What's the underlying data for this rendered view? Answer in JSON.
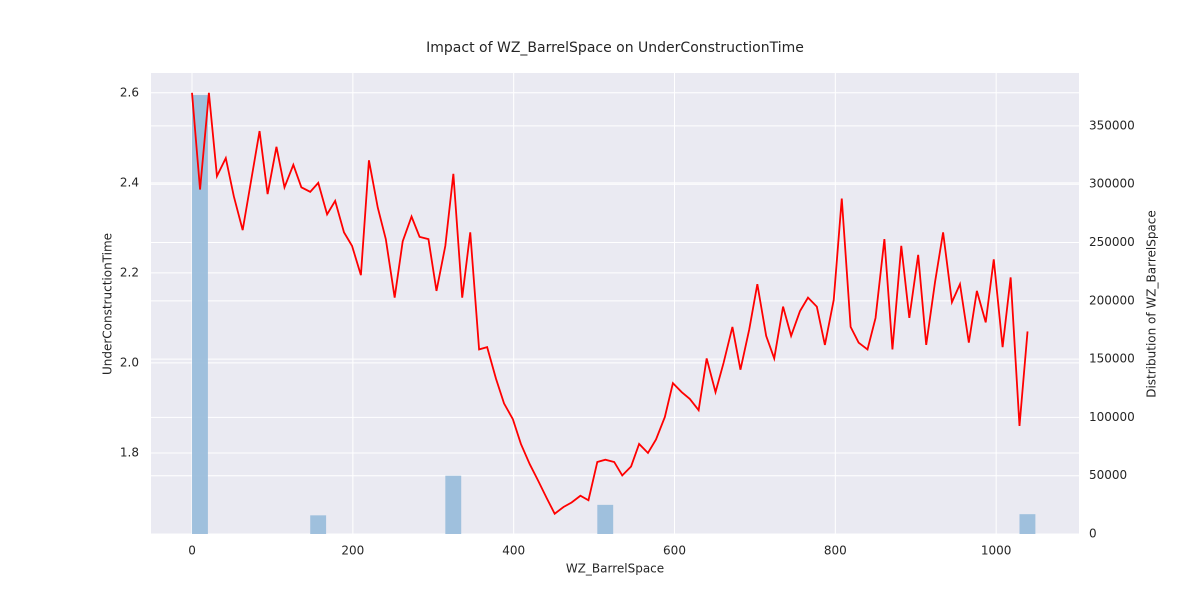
{
  "chart_data": {
    "type": "line+histogram",
    "title": "Impact of WZ_BarrelSpace on UnderConstructionTime",
    "xlabel": "WZ_BarrelSpace",
    "ylabel": "UnderConstructionTime",
    "y2label": "Distribution of WZ_BarrelSpace",
    "xlim": [
      -51,
      1103
    ],
    "xticks": [
      0,
      200,
      400,
      600,
      800,
      1000
    ],
    "ylim": [
      1.62,
      2.644
    ],
    "yticks": [
      1.8,
      {
        "value": 2,
        "label": "2.0"
      },
      2.2,
      2.4,
      2.6
    ],
    "y2lim": [
      0,
      395400
    ],
    "y2ticks": [
      0,
      50000,
      100000,
      150000,
      200000,
      250000,
      300000,
      350000
    ],
    "grid": true,
    "series": [
      {
        "type": "line",
        "color": "#ff0000",
        "x": [
          0,
          10,
          21,
          31,
          42,
          52,
          63,
          73,
          84,
          94,
          105,
          115,
          126,
          136,
          147,
          157,
          168,
          178,
          189,
          199,
          210,
          220,
          231,
          241,
          252,
          262,
          273,
          283,
          294,
          304,
          315,
          325,
          336,
          346,
          357,
          367,
          378,
          388,
          399,
          409,
          420,
          430,
          441,
          451,
          462,
          472,
          483,
          493,
          504,
          514,
          525,
          535,
          546,
          556,
          567,
          577,
          588,
          598,
          609,
          619,
          630,
          640,
          651,
          661,
          672,
          682,
          693,
          703,
          714,
          724,
          735,
          745,
          756,
          766,
          777,
          787,
          798,
          808,
          819,
          829,
          840,
          850,
          861,
          871,
          882,
          892,
          903,
          913,
          924,
          934,
          945,
          955,
          966,
          976,
          987,
          997,
          1008,
          1018,
          1029,
          1039
        ],
        "values": [
          2.6,
          2.385,
          2.6,
          2.415,
          2.455,
          2.37,
          2.295,
          2.4,
          2.515,
          2.375,
          2.48,
          2.39,
          2.44,
          2.39,
          2.38,
          2.4,
          2.33,
          2.36,
          2.29,
          2.26,
          2.195,
          2.45,
          2.345,
          2.275,
          2.145,
          2.27,
          2.325,
          2.28,
          2.275,
          2.16,
          2.26,
          2.42,
          2.145,
          2.29,
          2.03,
          2.035,
          1.965,
          1.91,
          1.875,
          1.82,
          1.775,
          1.74,
          1.7,
          1.665,
          1.68,
          1.69,
          1.705,
          1.695,
          1.78,
          1.785,
          1.78,
          1.75,
          1.77,
          1.82,
          1.8,
          1.83,
          1.88,
          1.955,
          1.935,
          1.92,
          1.895,
          2.01,
          1.935,
          2.0,
          2.08,
          1.985,
          2.075,
          2.175,
          2.06,
          2.01,
          2.125,
          2.06,
          2.115,
          2.145,
          2.125,
          2.04,
          2.14,
          2.365,
          2.08,
          2.045,
          2.03,
          2.1,
          2.275,
          2.03,
          2.26,
          2.1,
          2.24,
          2.04,
          2.18,
          2.29,
          2.135,
          2.175,
          2.045,
          2.16,
          2.09,
          2.23,
          2.035,
          2.19,
          1.86,
          2.07
        ]
      },
      {
        "type": "histogram",
        "axis": "y2",
        "color": "#9bbedb",
        "bins": [
          0,
          21,
          42,
          63,
          84,
          105,
          126,
          147,
          168,
          189,
          210,
          231,
          252,
          273,
          294,
          315,
          336,
          357,
          378,
          399,
          420,
          441,
          462,
          483,
          504,
          525,
          546,
          567,
          588,
          609,
          630,
          651,
          672,
          693,
          714,
          735,
          756,
          777,
          798,
          819,
          840,
          861,
          882,
          903,
          924,
          945,
          966,
          987,
          1008,
          1029,
          1050
        ],
        "values": [
          376500,
          0,
          0,
          0,
          0,
          0,
          0,
          16000,
          0,
          0,
          0,
          0,
          0,
          0,
          0,
          50000,
          0,
          0,
          0,
          0,
          0,
          0,
          0,
          0,
          25000,
          0,
          0,
          0,
          0,
          0,
          0,
          0,
          0,
          0,
          0,
          0,
          0,
          0,
          0,
          0,
          0,
          0,
          0,
          0,
          0,
          0,
          0,
          0,
          0,
          17000
        ]
      }
    ]
  }
}
